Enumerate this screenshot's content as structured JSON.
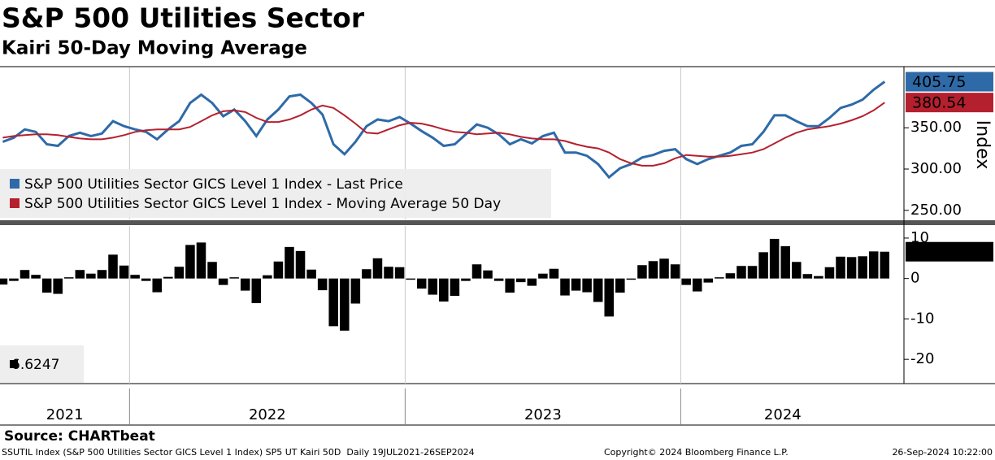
{
  "header": {
    "title": "S&P 500 Utilities Sector",
    "subtitle": "Kairi 50-Day Moving Average"
  },
  "source": "Source: CHARTbeat",
  "footer": {
    "description": "SSUTIL Index (S&P 500 Utilities Sector GICS Level 1 Index) SP5 UT Kairi 50D  Daily 19JUL2021-26SEP2024",
    "copyright": "Copyright© 2024 Bloomberg Finance L.P.",
    "timestamp": "26-Sep-2024 10:22:00"
  },
  "chart_data": [
    {
      "type": "line",
      "y_label": "Index",
      "legend": "bottom-left",
      "grid": "x",
      "x": [
        2021.54,
        2021.58,
        2021.62,
        2021.66,
        2021.7,
        2021.74,
        2021.78,
        2021.82,
        2021.86,
        2021.9,
        2021.94,
        2021.98,
        2022.02,
        2022.06,
        2022.1,
        2022.14,
        2022.18,
        2022.22,
        2022.26,
        2022.3,
        2022.34,
        2022.38,
        2022.42,
        2022.46,
        2022.5,
        2022.54,
        2022.58,
        2022.62,
        2022.66,
        2022.7,
        2022.74,
        2022.78,
        2022.82,
        2022.86,
        2022.9,
        2022.94,
        2022.98,
        2023.02,
        2023.06,
        2023.1,
        2023.14,
        2023.18,
        2023.22,
        2023.26,
        2023.3,
        2023.34,
        2023.38,
        2023.42,
        2023.46,
        2023.5,
        2023.54,
        2023.58,
        2023.62,
        2023.66,
        2023.7,
        2023.74,
        2023.78,
        2023.82,
        2023.86,
        2023.9,
        2023.94,
        2023.98,
        2024.02,
        2024.06,
        2024.1,
        2024.14,
        2024.18,
        2024.22,
        2024.26,
        2024.3,
        2024.34,
        2024.38,
        2024.42,
        2024.46,
        2024.5,
        2024.54,
        2024.58,
        2024.62,
        2024.66,
        2024.7,
        2024.74
      ],
      "xlim": [
        2021.53,
        2024.81
      ],
      "xticks": [
        2021,
        2022,
        2023,
        2024
      ],
      "ylim": [
        239,
        423
      ],
      "yticks": [
        {
          "value": 250,
          "label": "250.00"
        },
        {
          "value": 300,
          "label": "300.00"
        },
        {
          "value": 350,
          "label": "350.00"
        }
      ],
      "series": [
        {
          "name": "S&P 500 Utilities Sector GICS Level 1 Index - Last Price",
          "color": "#2e6aa8",
          "values": [
            333,
            338,
            348,
            345,
            330,
            328,
            340,
            344,
            340,
            343,
            358,
            352,
            348,
            345,
            336,
            348,
            358,
            380,
            390,
            380,
            364,
            372,
            358,
            340,
            360,
            372,
            388,
            390,
            380,
            366,
            330,
            318,
            333,
            352,
            360,
            358,
            363,
            355,
            346,
            338,
            328,
            330,
            342,
            354,
            350,
            342,
            330,
            336,
            331,
            340,
            344,
            320,
            320,
            316,
            306,
            290,
            301,
            306,
            314,
            317,
            322,
            324,
            312,
            306,
            312,
            316,
            320,
            328,
            330,
            345,
            365,
            365,
            358,
            352,
            352,
            362,
            374,
            378,
            384,
            396,
            405.75
          ]
        },
        {
          "name": "S&P 500 Utilities Sector GICS Level 1 Index - Moving Average 50 Day",
          "color": "#b5202e",
          "values": [
            338,
            340,
            341,
            342,
            342,
            341,
            339,
            337,
            336,
            336,
            338,
            341,
            345,
            347,
            348,
            348,
            348,
            351,
            358,
            365,
            370,
            371,
            369,
            362,
            357,
            357,
            360,
            365,
            372,
            377,
            374,
            365,
            355,
            344,
            343,
            348,
            353,
            356,
            355,
            352,
            348,
            345,
            344,
            342,
            343,
            344,
            342,
            339,
            337,
            336,
            336,
            334,
            330,
            327,
            325,
            320,
            312,
            307,
            304,
            304,
            307,
            313,
            317,
            316,
            315,
            315,
            316,
            318,
            320,
            324,
            331,
            338,
            344,
            348,
            350,
            352,
            355,
            359,
            364,
            371,
            380.54
          ]
        }
      ]
    },
    {
      "type": "bar",
      "color": "#000000",
      "x": [
        2021.54,
        2021.58,
        2021.62,
        2021.66,
        2021.7,
        2021.74,
        2021.78,
        2021.82,
        2021.86,
        2021.9,
        2021.94,
        2021.98,
        2022.02,
        2022.06,
        2022.1,
        2022.14,
        2022.18,
        2022.22,
        2022.26,
        2022.3,
        2022.34,
        2022.38,
        2022.42,
        2022.46,
        2022.5,
        2022.54,
        2022.58,
        2022.62,
        2022.66,
        2022.7,
        2022.74,
        2022.78,
        2022.82,
        2022.86,
        2022.9,
        2022.94,
        2022.98,
        2023.02,
        2023.06,
        2023.1,
        2023.14,
        2023.18,
        2023.22,
        2023.26,
        2023.3,
        2023.34,
        2023.38,
        2023.42,
        2023.46,
        2023.5,
        2023.54,
        2023.58,
        2023.62,
        2023.66,
        2023.7,
        2023.74,
        2023.78,
        2023.82,
        2023.86,
        2023.9,
        2023.94,
        2023.98,
        2024.02,
        2024.06,
        2024.1,
        2024.14,
        2024.18,
        2024.22,
        2024.26,
        2024.3,
        2024.34,
        2024.38,
        2024.42,
        2024.46,
        2024.5,
        2024.54,
        2024.58,
        2024.62,
        2024.66,
        2024.7,
        2024.74
      ],
      "ylim": [
        -26,
        13
      ],
      "yticks": [
        10,
        0,
        -10,
        -20
      ],
      "values": [
        -1.5,
        -0.6,
        2.1,
        0.9,
        -3.5,
        -3.8,
        0.3,
        2.1,
        1.2,
        2.1,
        5.9,
        3.2,
        0.9,
        -0.6,
        -3.4,
        0.4,
        2.9,
        8.3,
        8.9,
        4.1,
        -1.6,
        0.3,
        -3.0,
        -6.1,
        0.8,
        4.2,
        7.8,
        6.8,
        2.2,
        -2.9,
        -11.8,
        -12.9,
        -6.2,
        2.3,
        5.0,
        2.9,
        2.8,
        -0.3,
        -2.5,
        -4.0,
        -5.7,
        -4.3,
        -0.6,
        3.5,
        2.0,
        -0.6,
        -3.5,
        -0.9,
        -1.8,
        1.2,
        2.4,
        -4.2,
        -3.0,
        -3.4,
        -5.8,
        -9.4,
        -3.5,
        -0.3,
        3.3,
        4.3,
        4.9,
        3.5,
        -1.6,
        -3.2,
        -1.0,
        0.3,
        1.3,
        3.1,
        3.1,
        6.5,
        9.8,
        8.0,
        4.1,
        1.1,
        0.6,
        2.8,
        5.4,
        5.3,
        5.5,
        6.7,
        6.6247
      ]
    }
  ]
}
